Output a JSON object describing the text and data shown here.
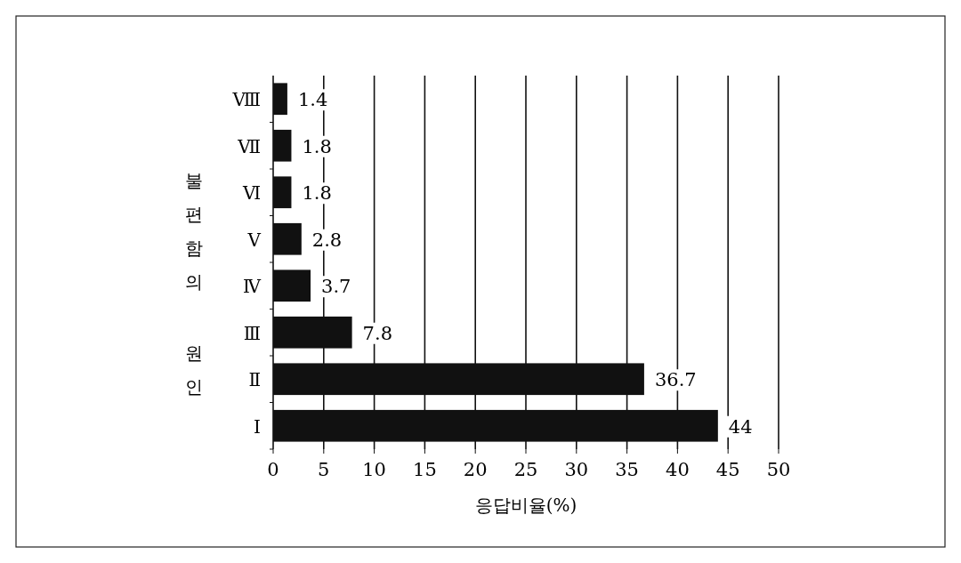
{
  "chart_data": {
    "type": "bar",
    "orientation": "horizontal",
    "ylabel": "불편함의 원인",
    "xlabel": "응답비율(%)",
    "categories": [
      "Ⅷ",
      "Ⅶ",
      "Ⅵ",
      "Ⅴ",
      "Ⅳ",
      "Ⅲ",
      "Ⅱ",
      "Ⅰ"
    ],
    "values": [
      1.4,
      1.8,
      1.8,
      2.8,
      3.7,
      7.8,
      36.7,
      44
    ],
    "color": "#111111",
    "xlim": [
      0,
      50
    ],
    "xticks": [
      0,
      5,
      10,
      15,
      20,
      25,
      30,
      35,
      40,
      45,
      50
    ],
    "grid": "x",
    "data_labels": true
  }
}
